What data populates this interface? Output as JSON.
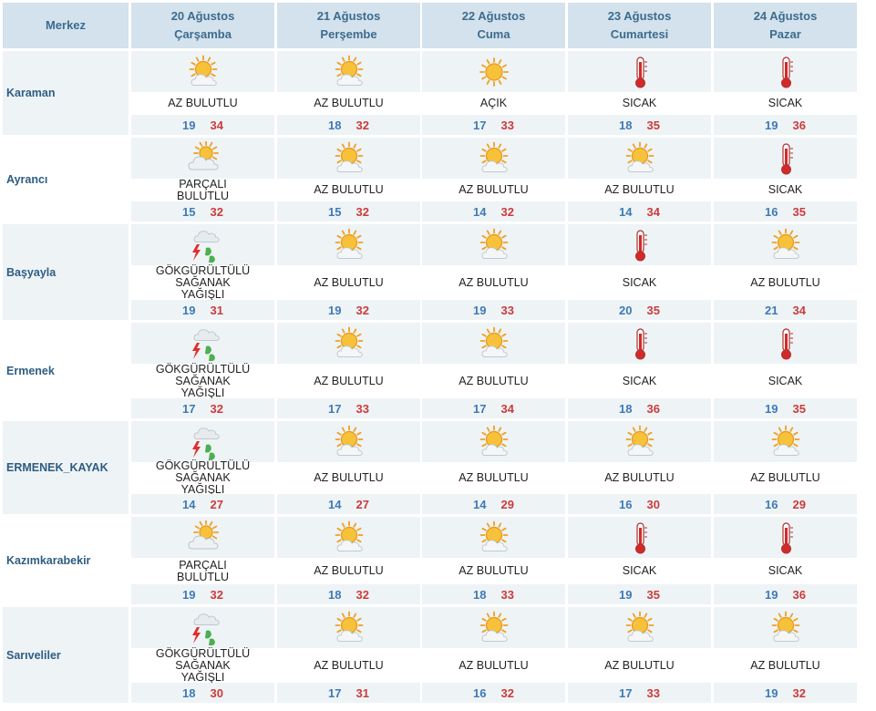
{
  "header": {
    "center_label": "Merkez",
    "days": [
      {
        "date": "20 Ağustos",
        "weekday": "Çarşamba"
      },
      {
        "date": "21 Ağustos",
        "weekday": "Perşembe"
      },
      {
        "date": "22 Ağustos",
        "weekday": "Cuma"
      },
      {
        "date": "23 Ağustos",
        "weekday": "Cumartesi"
      },
      {
        "date": "24 Ağustos",
        "weekday": "Pazar"
      }
    ]
  },
  "colors": {
    "header_bg": "#d3e2ec",
    "band_bg": "#eef3f6",
    "min_temp": "#3e7ab5",
    "max_temp": "#cc3b3b",
    "city_text": "#2e5d83"
  },
  "rows": [
    {
      "city": "Karaman",
      "forecasts": [
        {
          "icon": "partly-cloudy-sun-icon",
          "condition": "AZ BULUTLU",
          "min": "19",
          "max": "34"
        },
        {
          "icon": "partly-cloudy-sun-icon",
          "condition": "AZ BULUTLU",
          "min": "18",
          "max": "32"
        },
        {
          "icon": "sun-icon",
          "condition": "AÇIK",
          "min": "17",
          "max": "33"
        },
        {
          "icon": "thermometer-icon",
          "condition": "SICAK",
          "min": "18",
          "max": "35"
        },
        {
          "icon": "thermometer-icon",
          "condition": "SICAK",
          "min": "19",
          "max": "36"
        }
      ]
    },
    {
      "city": "Ayrancı",
      "forecasts": [
        {
          "icon": "mostly-cloudy-icon",
          "condition": "PARÇALI BULUTLU",
          "min": "15",
          "max": "32"
        },
        {
          "icon": "partly-cloudy-sun-icon",
          "condition": "AZ BULUTLU",
          "min": "15",
          "max": "32"
        },
        {
          "icon": "partly-cloudy-sun-icon",
          "condition": "AZ BULUTLU",
          "min": "14",
          "max": "32"
        },
        {
          "icon": "partly-cloudy-sun-icon",
          "condition": "AZ BULUTLU",
          "min": "14",
          "max": "34"
        },
        {
          "icon": "thermometer-icon",
          "condition": "SICAK",
          "min": "16",
          "max": "35"
        }
      ]
    },
    {
      "city": "Başyayla",
      "forecasts": [
        {
          "icon": "thunderstorm-icon",
          "condition": "GÖKGÜRÜLTÜLÜ SAĞANAK YAĞIŞLI",
          "min": "19",
          "max": "31"
        },
        {
          "icon": "partly-cloudy-sun-icon",
          "condition": "AZ BULUTLU",
          "min": "19",
          "max": "32"
        },
        {
          "icon": "partly-cloudy-sun-icon",
          "condition": "AZ BULUTLU",
          "min": "19",
          "max": "33"
        },
        {
          "icon": "thermometer-icon",
          "condition": "SICAK",
          "min": "20",
          "max": "35"
        },
        {
          "icon": "partly-cloudy-sun-icon",
          "condition": "AZ BULUTLU",
          "min": "21",
          "max": "34"
        }
      ]
    },
    {
      "city": "Ermenek",
      "forecasts": [
        {
          "icon": "thunderstorm-icon",
          "condition": "GÖKGÜRÜLTÜLÜ SAĞANAK YAĞIŞLI",
          "min": "17",
          "max": "32"
        },
        {
          "icon": "partly-cloudy-sun-icon",
          "condition": "AZ BULUTLU",
          "min": "17",
          "max": "33"
        },
        {
          "icon": "partly-cloudy-sun-icon",
          "condition": "AZ BULUTLU",
          "min": "17",
          "max": "34"
        },
        {
          "icon": "thermometer-icon",
          "condition": "SICAK",
          "min": "18",
          "max": "36"
        },
        {
          "icon": "thermometer-icon",
          "condition": "SICAK",
          "min": "19",
          "max": "35"
        }
      ]
    },
    {
      "city": "ERMENEK_KAYAK",
      "forecasts": [
        {
          "icon": "thunderstorm-icon",
          "condition": "GÖKGÜRÜLTÜLÜ SAĞANAK YAĞIŞLI",
          "min": "14",
          "max": "27"
        },
        {
          "icon": "partly-cloudy-sun-icon",
          "condition": "AZ BULUTLU",
          "min": "14",
          "max": "27"
        },
        {
          "icon": "partly-cloudy-sun-icon",
          "condition": "AZ BULUTLU",
          "min": "14",
          "max": "29"
        },
        {
          "icon": "partly-cloudy-sun-icon",
          "condition": "AZ BULUTLU",
          "min": "16",
          "max": "30"
        },
        {
          "icon": "partly-cloudy-sun-icon",
          "condition": "AZ BULUTLU",
          "min": "16",
          "max": "29"
        }
      ]
    },
    {
      "city": "Kazımkarabekir",
      "forecasts": [
        {
          "icon": "mostly-cloudy-icon",
          "condition": "PARÇALI BULUTLU",
          "min": "19",
          "max": "32"
        },
        {
          "icon": "partly-cloudy-sun-icon",
          "condition": "AZ BULUTLU",
          "min": "18",
          "max": "32"
        },
        {
          "icon": "partly-cloudy-sun-icon",
          "condition": "AZ BULUTLU",
          "min": "18",
          "max": "33"
        },
        {
          "icon": "thermometer-icon",
          "condition": "SICAK",
          "min": "19",
          "max": "35"
        },
        {
          "icon": "thermometer-icon",
          "condition": "SICAK",
          "min": "19",
          "max": "36"
        }
      ]
    },
    {
      "city": "Sarıveliler",
      "forecasts": [
        {
          "icon": "thunderstorm-icon",
          "condition": "GÖKGÜRÜLTÜLÜ SAĞANAK YAĞIŞLI",
          "min": "18",
          "max": "30"
        },
        {
          "icon": "partly-cloudy-sun-icon",
          "condition": "AZ BULUTLU",
          "min": "17",
          "max": "31"
        },
        {
          "icon": "partly-cloudy-sun-icon",
          "condition": "AZ BULUTLU",
          "min": "16",
          "max": "32"
        },
        {
          "icon": "partly-cloudy-sun-icon",
          "condition": "AZ BULUTLU",
          "min": "17",
          "max": "33"
        },
        {
          "icon": "partly-cloudy-sun-icon",
          "condition": "AZ BULUTLU",
          "min": "19",
          "max": "32"
        }
      ]
    }
  ]
}
